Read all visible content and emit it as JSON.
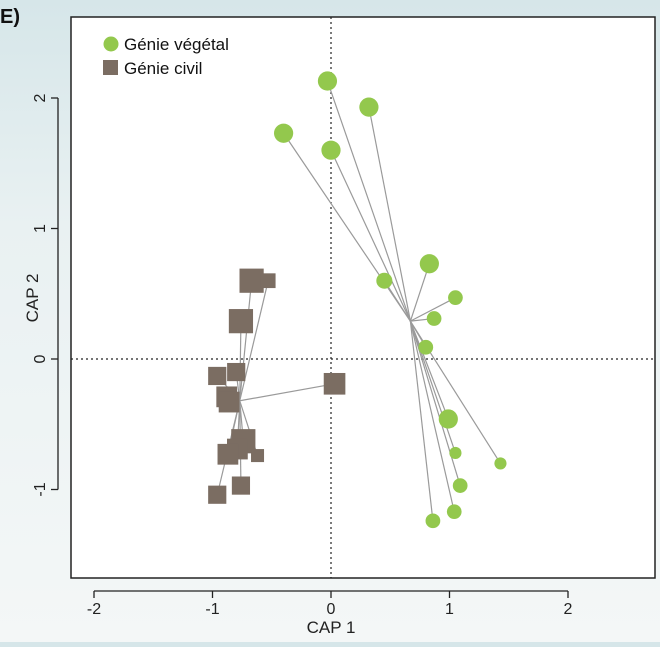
{
  "panel_label": "E)",
  "chart_data": {
    "type": "scatter",
    "xlabel": "CAP 1",
    "ylabel": "CAP 2",
    "xlim": [
      -2.0,
      2.7
    ],
    "ylim": [
      -1.65,
      2.62
    ],
    "xticks": [
      -2,
      -1,
      0,
      1,
      2
    ],
    "yticks": [
      -1,
      0,
      1,
      2
    ],
    "zero_lines": true,
    "legend_position": "top-left",
    "series": [
      {
        "name": "Génie végétal",
        "color": "#93c84d",
        "marker": "circle",
        "centroid": [
          0.67,
          0.29
        ],
        "points": [
          {
            "x": -0.4,
            "y": 1.73,
            "size": 2
          },
          {
            "x": -0.03,
            "y": 2.13,
            "size": 2
          },
          {
            "x": 0.32,
            "y": 1.93,
            "size": 2
          },
          {
            "x": 0.0,
            "y": 1.6,
            "size": 2
          },
          {
            "x": 0.45,
            "y": 0.6,
            "size": 1.5
          },
          {
            "x": 0.83,
            "y": 0.73,
            "size": 2
          },
          {
            "x": 1.05,
            "y": 0.47,
            "size": 1.3
          },
          {
            "x": 0.87,
            "y": 0.31,
            "size": 1.3
          },
          {
            "x": 0.8,
            "y": 0.09,
            "size": 1.3
          },
          {
            "x": 0.99,
            "y": -0.46,
            "size": 2
          },
          {
            "x": 1.05,
            "y": -0.72,
            "size": 0.9
          },
          {
            "x": 1.43,
            "y": -0.8,
            "size": 0.9
          },
          {
            "x": 1.09,
            "y": -0.97,
            "size": 1.3
          },
          {
            "x": 1.04,
            "y": -1.17,
            "size": 1.3
          },
          {
            "x": 0.86,
            "y": -1.24,
            "size": 1.3
          }
        ]
      },
      {
        "name": "Génie civil",
        "color": "#7b6d62",
        "marker": "square",
        "centroid": [
          -0.77,
          -0.32
        ],
        "points": [
          {
            "x": -0.67,
            "y": 0.6,
            "size": 2
          },
          {
            "x": -0.53,
            "y": 0.6,
            "size": 0.9
          },
          {
            "x": -0.76,
            "y": 0.29,
            "size": 2
          },
          {
            "x": -0.8,
            "y": -0.1,
            "size": 1.3
          },
          {
            "x": -0.96,
            "y": -0.13,
            "size": 1.3
          },
          {
            "x": -0.88,
            "y": -0.29,
            "size": 1.6
          },
          {
            "x": -0.86,
            "y": -0.33,
            "size": 1.6
          },
          {
            "x": 0.03,
            "y": -0.19,
            "size": 1.7
          },
          {
            "x": -0.74,
            "y": -0.63,
            "size": 2
          },
          {
            "x": -0.79,
            "y": -0.69,
            "size": 1.6
          },
          {
            "x": -0.87,
            "y": -0.73,
            "size": 1.6
          },
          {
            "x": -0.62,
            "y": -0.74,
            "size": 0.7
          },
          {
            "x": -0.76,
            "y": -0.97,
            "size": 1.3
          },
          {
            "x": -0.96,
            "y": -1.04,
            "size": 1.3
          }
        ]
      }
    ]
  }
}
